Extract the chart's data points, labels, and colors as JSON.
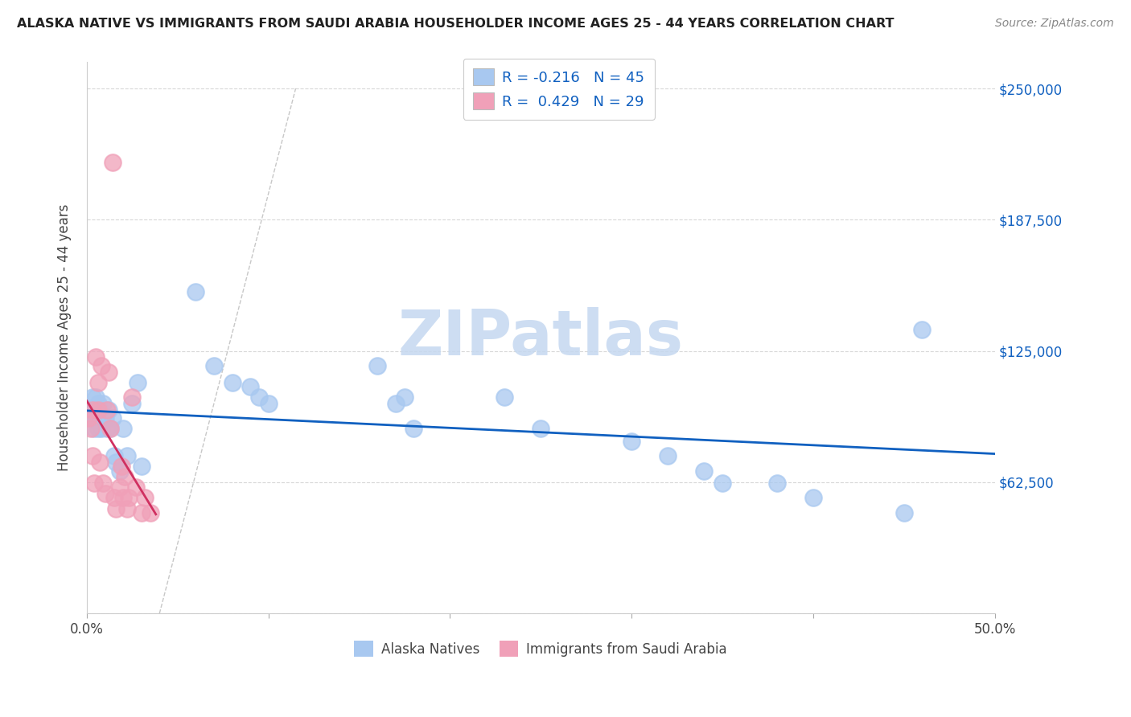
{
  "title": "ALASKA NATIVE VS IMMIGRANTS FROM SAUDI ARABIA HOUSEHOLDER INCOME AGES 25 - 44 YEARS CORRELATION CHART",
  "source": "Source: ZipAtlas.com",
  "ylabel": "Householder Income Ages 25 - 44 years",
  "xlim": [
    0.0,
    0.5
  ],
  "ylim": [
    0,
    262500
  ],
  "yticks": [
    0,
    62500,
    125000,
    187500,
    250000
  ],
  "ytick_labels": [
    "",
    "$62,500",
    "$125,000",
    "$187,500",
    "$250,000"
  ],
  "xticks": [
    0.0,
    0.1,
    0.2,
    0.3,
    0.4,
    0.5
  ],
  "xtick_labels": [
    "0.0%",
    "",
    "",
    "",
    "",
    "50.0%"
  ],
  "watermark": "ZIPatlas",
  "blue_color": "#a8c8f0",
  "pink_color": "#f0a0b8",
  "blue_line_color": "#1060c0",
  "pink_line_color": "#d03060",
  "watermark_color": "#c5d8f0",
  "alaska_x": [
    0.002,
    0.003,
    0.003,
    0.004,
    0.004,
    0.005,
    0.005,
    0.006,
    0.006,
    0.007,
    0.008,
    0.009,
    0.01,
    0.011,
    0.012,
    0.013,
    0.014,
    0.015,
    0.016,
    0.018,
    0.02,
    0.022,
    0.025,
    0.028,
    0.03,
    0.06,
    0.07,
    0.08,
    0.09,
    0.095,
    0.1,
    0.16,
    0.17,
    0.175,
    0.18,
    0.23,
    0.25,
    0.3,
    0.32,
    0.34,
    0.35,
    0.38,
    0.4,
    0.45,
    0.46
  ],
  "alaska_y": [
    97000,
    103000,
    93000,
    97000,
    88000,
    103000,
    92000,
    100000,
    88000,
    97000,
    88000,
    100000,
    93000,
    88000,
    97000,
    88000,
    93000,
    75000,
    72000,
    68000,
    88000,
    75000,
    100000,
    110000,
    70000,
    153000,
    118000,
    110000,
    108000,
    103000,
    100000,
    118000,
    100000,
    103000,
    88000,
    103000,
    88000,
    82000,
    75000,
    68000,
    62000,
    62000,
    55000,
    48000,
    135000
  ],
  "saudi_x": [
    0.001,
    0.002,
    0.003,
    0.003,
    0.004,
    0.005,
    0.006,
    0.006,
    0.007,
    0.008,
    0.009,
    0.01,
    0.011,
    0.012,
    0.013,
    0.014,
    0.015,
    0.016,
    0.018,
    0.019,
    0.02,
    0.021,
    0.022,
    0.023,
    0.025,
    0.027,
    0.03,
    0.032,
    0.035
  ],
  "saudi_y": [
    93000,
    88000,
    75000,
    97000,
    62000,
    122000,
    110000,
    97000,
    72000,
    118000,
    62000,
    57000,
    97000,
    115000,
    88000,
    215000,
    55000,
    50000,
    60000,
    70000,
    55000,
    65000,
    50000,
    55000,
    103000,
    60000,
    48000,
    55000,
    48000
  ]
}
